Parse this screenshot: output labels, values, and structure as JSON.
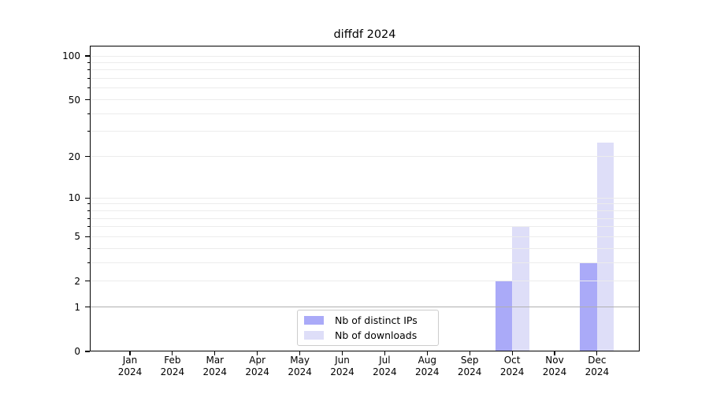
{
  "chart_data": {
    "type": "bar",
    "title": "diffdf 2024",
    "categories": [
      "Jan 2024",
      "Feb 2024",
      "Mar 2024",
      "Apr 2024",
      "May 2024",
      "Jun 2024",
      "Jul 2024",
      "Aug 2024",
      "Sep 2024",
      "Oct 2024",
      "Nov 2024",
      "Dec 2024"
    ],
    "series": [
      {
        "name": "Nb of distinct IPs",
        "color": "#aaaaf8",
        "values": [
          0,
          0,
          0,
          0,
          0,
          0,
          0,
          0,
          0,
          2,
          0,
          3
        ]
      },
      {
        "name": "Nb of downloads",
        "color": "#dedef8",
        "values": [
          0,
          0,
          0,
          0,
          0,
          0,
          0,
          0,
          0,
          6,
          0,
          25
        ]
      }
    ],
    "y_axis": {
      "scale": "log1p",
      "tick_values": [
        0,
        1,
        2,
        5,
        10,
        20,
        50,
        100
      ],
      "tick_labels": [
        "0",
        "1",
        "2",
        "5",
        "10",
        "20",
        "50",
        "100"
      ],
      "minor_gridline_values": [
        2,
        3,
        4,
        5,
        6,
        7,
        8,
        9,
        10,
        20,
        30,
        40,
        50,
        60,
        70,
        80,
        90,
        100
      ],
      "reference_line": {
        "value": 1,
        "color": "#b0b0b0"
      },
      "range": [
        0,
        117
      ]
    },
    "x_axis": {
      "label_line2": "2024"
    },
    "grid": {
      "visible": true,
      "color": "#ececec"
    },
    "legend": {
      "position": "lower center",
      "border_color": "#cccccc",
      "background": "#ffffff"
    },
    "frame_color": "#000000",
    "background": "#ffffff"
  }
}
